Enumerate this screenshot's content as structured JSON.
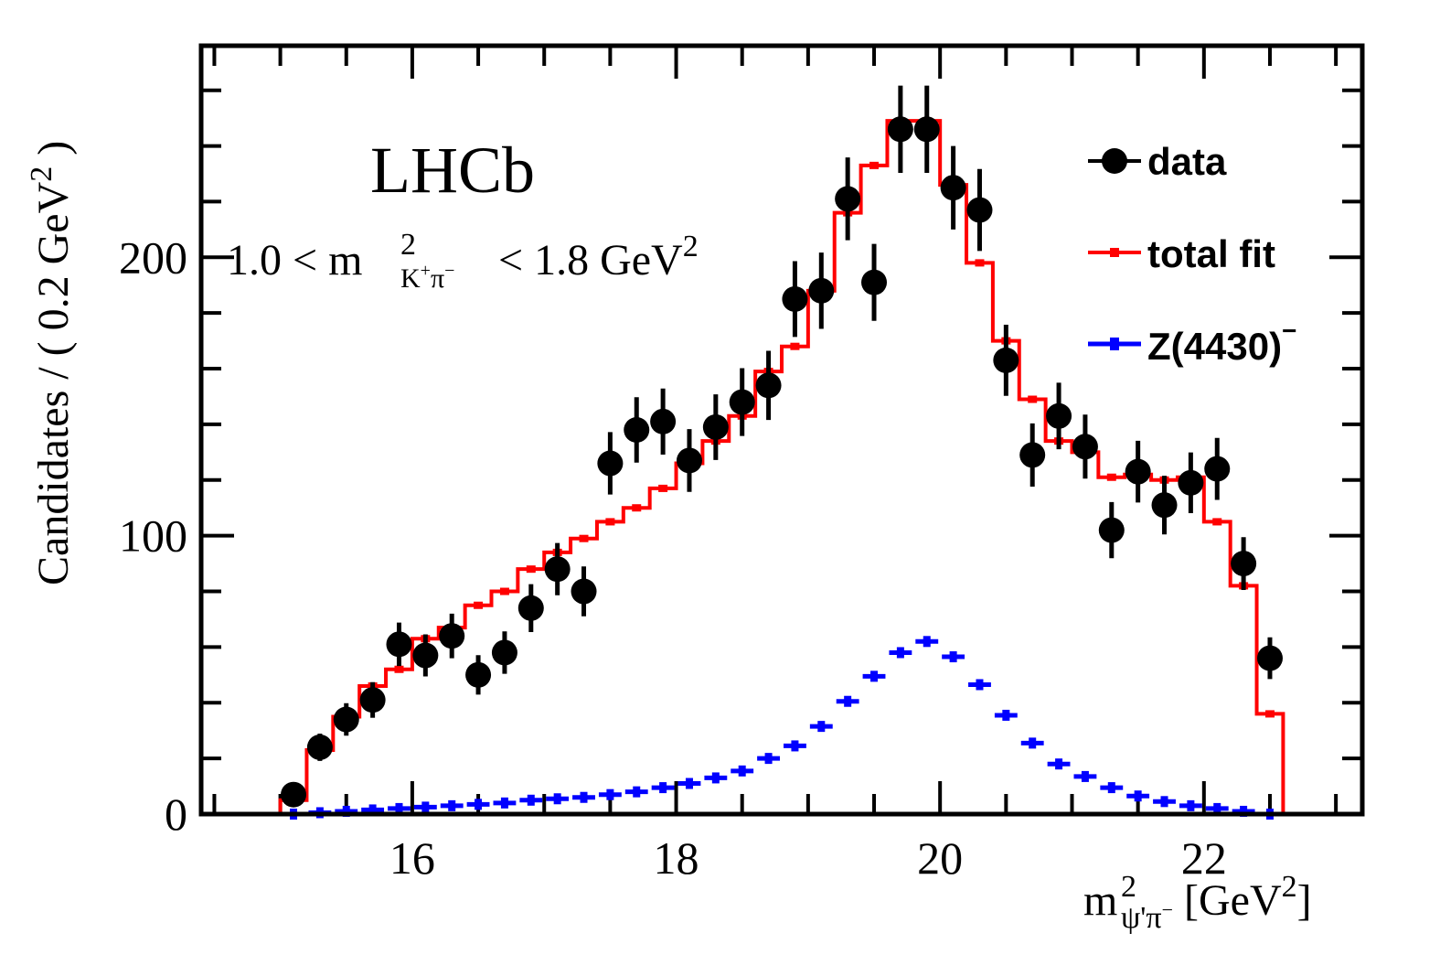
{
  "chart_data": {
    "type": "histogram",
    "experiment_label": "LHCb",
    "selection_label": {
      "lo": "1.0",
      "var": "m",
      "sup": "2",
      "sub_k": "K",
      "sub_k_sup": "+",
      "sub_pi": "π",
      "sub_pi_sup": "−",
      "hi": "1.8",
      "unit": "GeV",
      "unit_sup": "2",
      "lt": "<"
    },
    "xlabel": {
      "var": "m",
      "sup": "2",
      "sub": "ψ'π",
      "sub_sup": "−",
      "unit": "[GeV",
      "unit_sup": "2",
      "close": "]"
    },
    "ylabel": {
      "text": "Candidates / ( 0.2 GeV",
      "sup": "2",
      "close": " )"
    },
    "xlim": [
      14.4,
      23.2
    ],
    "ylim": [
      0,
      276
    ],
    "x_ticks": [
      16,
      18,
      20,
      22
    ],
    "x_tick_labels": [
      "16",
      "18",
      "20",
      "22"
    ],
    "y_ticks": [
      0,
      100,
      200
    ],
    "y_tick_labels": [
      "0",
      "100",
      "200"
    ],
    "grid": false,
    "legend_position": "top-right",
    "legend": [
      {
        "label": "data",
        "color": "#000000"
      },
      {
        "label": "total fit",
        "color": "#ff0000"
      },
      {
        "label": "Z(4430)",
        "sup": "−",
        "color": "#0000ff"
      }
    ],
    "bin_width": 0.2,
    "x": [
      15.1,
      15.3,
      15.5,
      15.7,
      15.9,
      16.1,
      16.3,
      16.5,
      16.7,
      16.9,
      17.1,
      17.3,
      17.5,
      17.7,
      17.9,
      18.1,
      18.3,
      18.5,
      18.7,
      18.9,
      19.1,
      19.3,
      19.5,
      19.7,
      19.9,
      20.1,
      20.3,
      20.5,
      20.7,
      20.9,
      21.1,
      21.3,
      21.5,
      21.7,
      21.9,
      22.1,
      22.3,
      22.5
    ],
    "series": [
      {
        "name": "data",
        "color": "#000000",
        "values": [
          7,
          24,
          34,
          41,
          61,
          57,
          64,
          50,
          58,
          74,
          88,
          80,
          126,
          138,
          141,
          127,
          139,
          148,
          154,
          185,
          188,
          221,
          191,
          246,
          246,
          225,
          217,
          163,
          129,
          143,
          132,
          102,
          123,
          111,
          119,
          124,
          90,
          56
        ]
      },
      {
        "name": "total fit",
        "color": "#ff0000",
        "values": [
          5,
          23,
          35,
          46,
          52,
          63,
          67,
          75,
          80,
          88,
          94,
          99,
          105,
          110,
          117,
          126,
          134,
          143,
          159,
          168,
          188,
          216,
          233,
          249,
          249,
          226,
          198,
          170,
          149,
          134,
          130,
          121,
          122,
          120,
          121,
          105,
          82,
          36
        ]
      },
      {
        "name": "Z(4430)-",
        "color": "#0000ff",
        "values": [
          0,
          0.5,
          1,
          1.5,
          2,
          2.5,
          3,
          3.5,
          4,
          5,
          5.5,
          6,
          7,
          8,
          9.5,
          11,
          13,
          15.5,
          20,
          24.5,
          31.5,
          40.5,
          49.5,
          58,
          62,
          56.5,
          46.5,
          35.5,
          25.5,
          18,
          13.5,
          9.5,
          6.5,
          4.5,
          3,
          2,
          1,
          0
        ]
      }
    ]
  }
}
